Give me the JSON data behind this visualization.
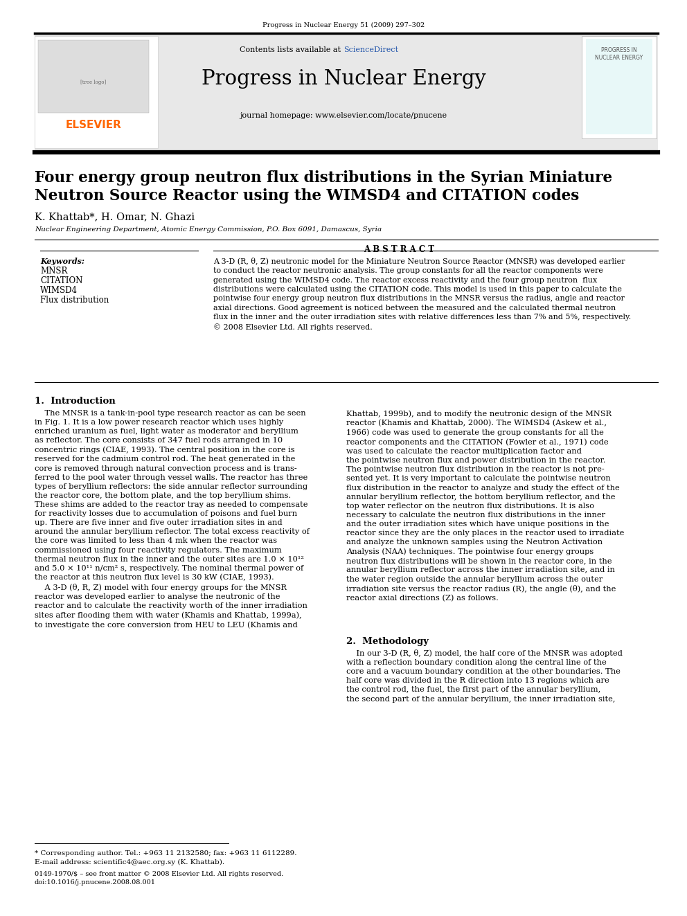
{
  "journal_ref": "Progress in Nuclear Energy 51 (2009) 297–302",
  "contents_text": "Contents lists available at ",
  "sciencedirect_text": "ScienceDirect",
  "journal_name": "Progress in Nuclear Energy",
  "journal_url": "journal homepage: www.elsevier.com/locate/pnucene",
  "paper_title_line1": "Four energy group neutron flux distributions in the Syrian Miniature",
  "paper_title_line2": "Neutron Source Reactor using the WIMSD4 and CITATION codes",
  "authors": "K. Khattab*, H. Omar, N. Ghazi",
  "affiliation": "Nuclear Engineering Department, Atomic Energy Commission, P.O. Box 6091, Damascus, Syria",
  "keywords_label": "Keywords:",
  "keywords": [
    "MNSR",
    "CITATION",
    "WIMSD4",
    "Flux distribution"
  ],
  "abstract_title": "A B S T R A C T",
  "abstract_text": "A 3-D (R, θ, Z) neutronic model for the Miniature Neutron Source Reactor (MNSR) was developed earlier\nto conduct the reactor neutronic analysis. The group constants for all the reactor components were\ngenerated using the WIMSD4 code. The reactor excess reactivity and the four group neutron  flux\ndistributions were calculated using the CITATION code. This model is used in this paper to calculate the\npointwise four energy group neutron flux distributions in the MNSR versus the radius, angle and reactor\naxial directions. Good agreement is noticed between the measured and the calculated thermal neutron\nflux in the inner and the outer irradiation sites with relative differences less than 7% and 5%, respectively.\n© 2008 Elsevier Ltd. All rights reserved.",
  "section1_title": "1.  Introduction",
  "col1_para1": "    The MNSR is a tank-in-pool type research reactor as can be seen\nin Fig. 1. It is a low power research reactor which uses highly\nenriched uranium as fuel, light water as moderator and beryllium\nas reflector. The core consists of 347 fuel rods arranged in 10\nconcentric rings (CIAE, 1993). The central position in the core is\nreserved for the cadmium control rod. The heat generated in the\ncore is removed through natural convection process and is trans-\nferred to the pool water through vessel walls. The reactor has three\ntypes of beryllium reflectors: the side annular reflector surrounding\nthe reactor core, the bottom plate, and the top beryllium shims.\nThese shims are added to the reactor tray as needed to compensate\nfor reactivity losses due to accumulation of poisons and fuel burn\nup. There are five inner and five outer irradiation sites in and\naround the annular beryllium reflector. The total excess reactivity of\nthe core was limited to less than 4 mk when the reactor was\ncommissioned using four reactivity regulators. The maximum\nthermal neutron flux in the inner and the outer sites are 1.0 × 10¹²\nand 5.0 × 10¹¹ n/cm² s, respectively. The nominal thermal power of\nthe reactor at this neutron flux level is 30 kW (CIAE, 1993).\n    A 3-D (θ, R, Z) model with four energy groups for the MNSR\nreactor was developed earlier to analyse the neutronic of the\nreactor and to calculate the reactivity worth of the inner irradiation\nsites after flooding them with water (Khamis and Khattab, 1999a),\nto investigate the core conversion from HEU to LEU (Khamis and",
  "col2_para1": "Khattab, 1999b), and to modify the neutronic design of the MNSR\nreactor (Khamis and Khattab, 2000). The WIMSD4 (Askew et al.,\n1966) code was used to generate the group constants for all the\nreactor components and the CITATION (Fowler et al., 1971) code\nwas used to calculate the reactor multiplication factor and\nthe pointwise neutron flux and power distribution in the reactor.\nThe pointwise neutron flux distribution in the reactor is not pre-\nsented yet. It is very important to calculate the pointwise neutron\nflux distribution in the reactor to analyze and study the effect of the\nannular beryllium reflector, the bottom beryllium reflector, and the\ntop water reflector on the neutron flux distributions. It is also\nnecessary to calculate the neutron flux distributions in the inner\nand the outer irradiation sites which have unique positions in the\nreactor since they are the only places in the reactor used to irradiate\nand analyze the unknown samples using the Neutron Activation\nAnalysis (NAA) techniques. The pointwise four energy groups\nneutron flux distributions will be shown in the reactor core, in the\nannular beryllium reflector across the inner irradiation site, and in\nthe water region outside the annular beryllium across the outer\nirradiation site versus the reactor radius (R), the angle (θ), and the\nreactor axial directions (Z) as follows.",
  "section2_title": "2.  Methodology",
  "col2_para2": "    In our 3-D (R, θ, Z) model, the half core of the MNSR was adopted\nwith a reflection boundary condition along the central line of the\ncore and a vacuum boundary condition at the other boundaries. The\nhalf core was divided in the R direction into 13 regions which are\nthe control rod, the fuel, the first part of the annular beryllium,\nthe second part of the annular beryllium, the inner irradiation site,",
  "footnote_line": "* Corresponding author. Tel.: +963 11 2132580; fax: +963 11 6112289.",
  "footnote_email": "E-mail address: scientific4@aec.org.sy (K. Khattab).",
  "footer_line1": "0149-1970/$ – see front matter © 2008 Elsevier Ltd. All rights reserved.",
  "footer_line2": "doi:10.1016/j.pnucene.2008.08.001",
  "elsevier_color": "#FF6600",
  "link_color": "#2255AA",
  "header_bg": "#E8E8E8",
  "black": "#000000"
}
